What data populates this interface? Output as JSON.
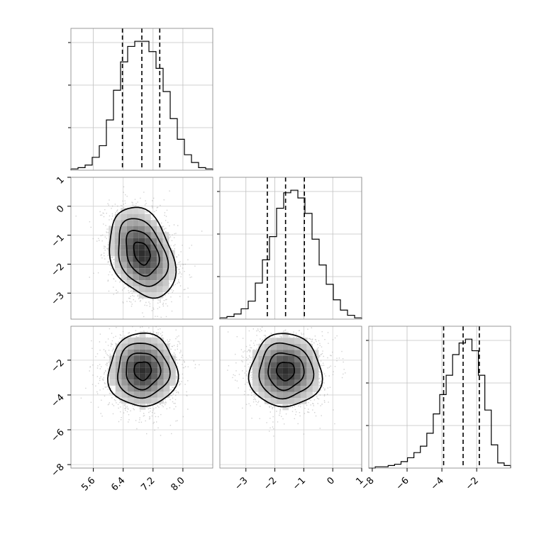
{
  "chart_data": {
    "type": "corner",
    "grid": true,
    "parameters": [
      {
        "range": [
          5.0,
          8.8
        ],
        "ticks": [
          5.6,
          6.4,
          7.2,
          8.0
        ],
        "tick_labels": [
          "5.6",
          "6.4",
          "7.2",
          "8.0"
        ],
        "quantiles": [
          6.38,
          6.9,
          7.38
        ]
      },
      {
        "range": [
          -3.9,
          1.0
        ],
        "ticks": [
          -3,
          -2,
          -1,
          0,
          1
        ],
        "tick_labels": [
          "−3",
          "−2",
          "−1",
          "0",
          "1"
        ],
        "quantiles": [
          -2.26,
          -1.63,
          -0.98
        ]
      },
      {
        "range": [
          -8.2,
          -0.05
        ],
        "ticks": [
          -8,
          -6,
          -4,
          -2
        ],
        "tick_labels": [
          "−8",
          "−6",
          "−4",
          "−2"
        ],
        "quantiles": [
          -3.9,
          -2.78,
          -1.85
        ]
      }
    ],
    "histograms": [
      {
        "counts": [
          1,
          2,
          4,
          10,
          19,
          39,
          62,
          84,
          96,
          100,
          100,
          92,
          79,
          61,
          40,
          24,
          12,
          6,
          2,
          1
        ]
      },
      {
        "counts": [
          1,
          2,
          4,
          8,
          14,
          28,
          46,
          64,
          86,
          98,
          100,
          94,
          82,
          62,
          42,
          27,
          15,
          7,
          3,
          1
        ]
      },
      {
        "counts": [
          0,
          1,
          1,
          2,
          3,
          5,
          8,
          12,
          17,
          27,
          42,
          57,
          72,
          88,
          97,
          100,
          91,
          72,
          45,
          18,
          4,
          2
        ]
      }
    ],
    "pairs": [
      {
        "x_param": 0,
        "y_param": 1,
        "center": [
          6.9,
          -1.62
        ],
        "sd": [
          0.44,
          0.78
        ],
        "corr": -0.3
      },
      {
        "x_param": 0,
        "y_param": 2,
        "center": [
          6.92,
          -2.6
        ],
        "sd": [
          0.46,
          1.05
        ],
        "corr": 0.0
      },
      {
        "x_param": 1,
        "y_param": 2,
        "center": [
          -1.63,
          -2.62
        ],
        "sd": [
          0.62,
          1.05
        ],
        "corr": 0.0
      }
    ]
  }
}
